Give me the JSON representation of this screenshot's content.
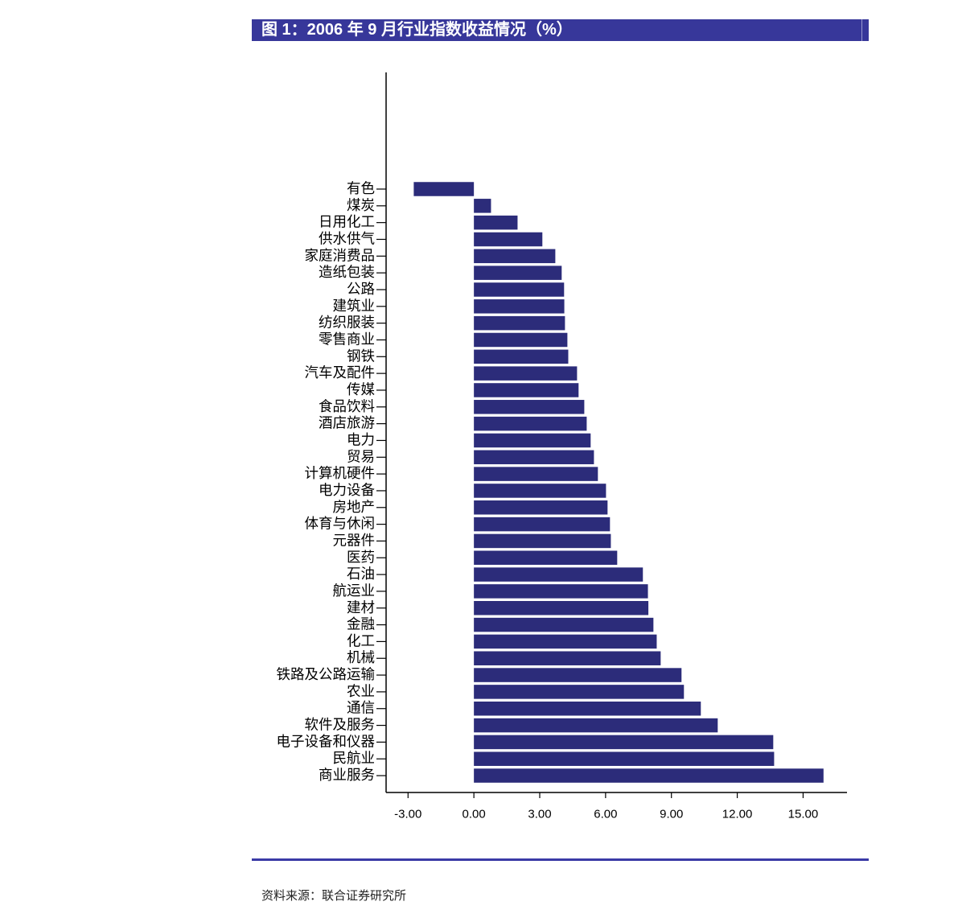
{
  "colors": {
    "banner_bg": "#37379a",
    "banner_text": "#ffffff",
    "bar": "#2c2c7a",
    "axis": "#000000",
    "rule": "#3a3aa6"
  },
  "source": "资料来源：联合证券研究所",
  "chart_data": {
    "type": "bar",
    "orientation": "horizontal",
    "title": "图 1：2006 年 9 月行业指数收益情况（%）",
    "categories": [
      "有色",
      "煤炭",
      "日用化工",
      "供水供气",
      "家庭消费品",
      "造纸包装",
      "公路",
      "建筑业",
      "纺织服装",
      "零售商业",
      "钢铁",
      "汽车及配件",
      "传媒",
      "食品饮料",
      "酒店旅游",
      "电力",
      "贸易",
      "计算机硬件",
      "电力设备",
      "房地产",
      "体育与休闲",
      "元器件",
      "医药",
      "石油",
      "航运业",
      "建材",
      "金融",
      "化工",
      "机械",
      "铁路及公路运输",
      "农业",
      "通信",
      "软件及服务",
      "电子设备和仪器",
      "民航业",
      "商业服务"
    ],
    "values": [
      -2.74,
      0.78,
      1.99,
      3.12,
      3.71,
      4.0,
      4.11,
      4.12,
      4.15,
      4.26,
      4.3,
      4.7,
      4.77,
      5.03,
      5.14,
      5.32,
      5.47,
      5.65,
      6.02,
      6.09,
      6.2,
      6.24,
      6.53,
      7.7,
      7.93,
      7.95,
      8.18,
      8.33,
      8.51,
      9.46,
      9.57,
      10.34,
      11.11,
      13.64,
      13.68,
      15.93
    ],
    "xlim": [
      -4,
      17
    ],
    "xticks": [
      -3,
      0,
      3,
      6,
      9,
      12,
      15
    ],
    "xtick_labels": [
      "-3.00",
      "0.00",
      "3.00",
      "6.00",
      "9.00",
      "12.00",
      "15.00"
    ],
    "grid": false
  }
}
